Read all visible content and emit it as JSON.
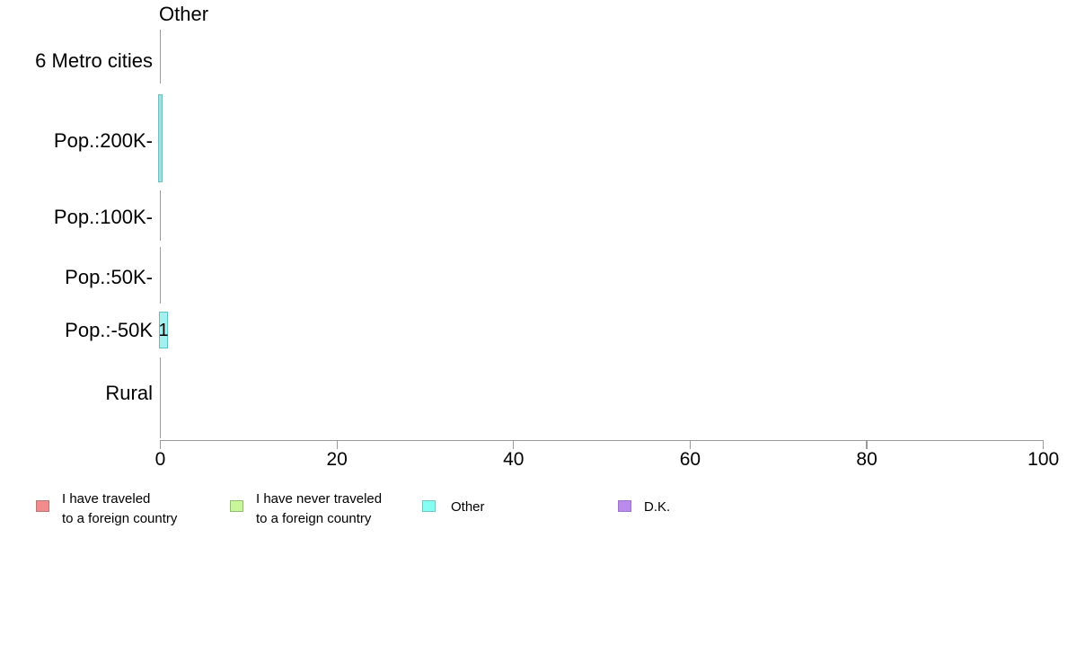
{
  "chart_data": {
    "type": "bar",
    "orientation": "horizontal",
    "title": "Other",
    "categories": [
      "6 Metro cities",
      "Pop.:200K-",
      "Pop.:100K-",
      "Pop.:50K-",
      "Pop.:-50K",
      "Rural"
    ],
    "series": [
      {
        "name_line1": "I have traveled",
        "name_line2": "to a foreign country",
        "color": "#f28c8c",
        "border": "#b87878",
        "values": [
          0,
          0,
          0,
          0,
          0,
          0
        ]
      },
      {
        "name_line1": "I have never traveled",
        "name_line2": "to a foreign country",
        "color": "#c9f59b",
        "border": "#93bd74",
        "values": [
          0,
          0,
          0,
          0,
          0,
          0
        ]
      },
      {
        "name_line1": "Other",
        "name_line2": "",
        "color": "#85fff2",
        "border": "#6fc7c0",
        "values": [
          0,
          0.3,
          0,
          0,
          1,
          0
        ]
      },
      {
        "name_line1": "D.K.",
        "name_line2": "",
        "color": "#ba8bec",
        "border": "#9a77c4",
        "values": [
          0,
          0,
          0,
          0,
          0,
          0
        ]
      }
    ],
    "x_ticks": [
      "0",
      "20",
      "40",
      "60",
      "80",
      "100"
    ],
    "xlim": [
      0,
      100
    ],
    "grid": false,
    "legend_position": "bottom"
  },
  "plot": {
    "axis_color": "#9a9a9a",
    "zero_line_color": "#9a9a9a",
    "mini_bar_fill": "#aadcda",
    "mini_bar_border": "#6fc0be",
    "bar_fill": "#a5efef",
    "bar_border": "#5bc4c4",
    "text_color": "#000000",
    "background": "#ffffff"
  }
}
